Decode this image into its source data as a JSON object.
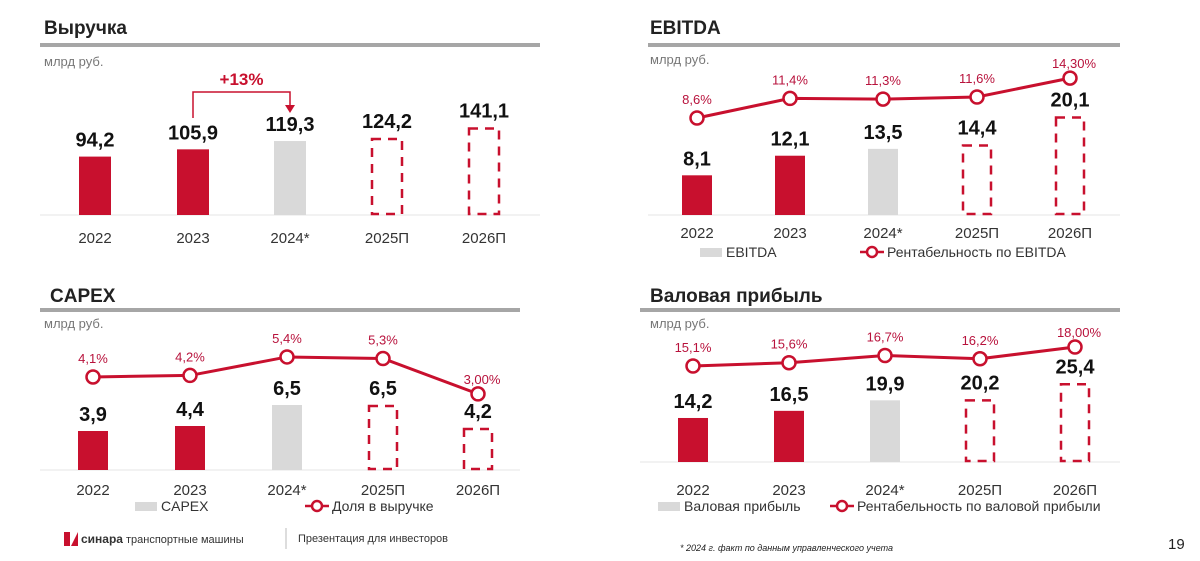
{
  "colors": {
    "accent": "#c8102e",
    "actual_2024": "#d9d9d9",
    "forecast_outline": "#c8102e",
    "rule": "#a6a6a6"
  },
  "chart_data": [
    {
      "type": "bar",
      "title": "Выручка",
      "unit": "млрд руб.",
      "categories": [
        "2022",
        "2023",
        "2024*",
        "2025П",
        "2026П"
      ],
      "values": [
        94.2,
        105.9,
        119.3,
        124.2,
        141.1
      ],
      "value_labels": [
        "94,2",
        "105,9",
        "119,3",
        "124,2",
        "141,1"
      ],
      "bar_styles": [
        "solid-red",
        "solid-red",
        "solid-gray",
        "dashed-outline",
        "dashed-outline"
      ],
      "annotation": {
        "text": "+13%",
        "from": "2023",
        "to": "2024*"
      }
    },
    {
      "type": "bar+line",
      "title": "EBITDA",
      "unit": "млрд руб.",
      "categories": [
        "2022",
        "2023",
        "2024*",
        "2025П",
        "2026П"
      ],
      "values": [
        8.1,
        12.1,
        13.5,
        14.4,
        20.1
      ],
      "value_labels": [
        "8,1",
        "12,1",
        "13,5",
        "14,4",
        "20,1"
      ],
      "bar_styles": [
        "solid-red",
        "solid-red",
        "solid-gray",
        "dashed-outline",
        "dashed-outline"
      ],
      "line_values": [
        8.6,
        11.4,
        11.3,
        11.6,
        14.3
      ],
      "line_labels": [
        "8,6%",
        "11,4%",
        "11,3%",
        "11,6%",
        "14,30%"
      ],
      "legend": {
        "bar": "EBITDA",
        "line": "Рентабельность по EBITDA"
      }
    },
    {
      "type": "bar+line",
      "title": "CAPEX",
      "unit": "млрд руб.",
      "categories": [
        "2022",
        "2023",
        "2024*",
        "2025П",
        "2026П"
      ],
      "values": [
        3.9,
        4.4,
        6.5,
        6.5,
        4.2
      ],
      "value_labels": [
        "3,9",
        "4,4",
        "6,5",
        "6,5",
        "4,2"
      ],
      "bar_styles": [
        "solid-red",
        "solid-red",
        "solid-gray",
        "dashed-outline",
        "dashed-outline"
      ],
      "line_values": [
        4.1,
        4.2,
        5.4,
        5.3,
        3.0
      ],
      "line_labels": [
        "4,1%",
        "4,2%",
        "5,4%",
        "5,3%",
        "3,00%"
      ],
      "legend": {
        "bar": "CAPEX",
        "line": "Доля в выручке"
      }
    },
    {
      "type": "bar+line",
      "title": "Валовая прибыль",
      "unit": "млрд руб.",
      "categories": [
        "2022",
        "2023",
        "2024*",
        "2025П",
        "2026П"
      ],
      "values": [
        14.2,
        16.5,
        19.9,
        20.2,
        25.4
      ],
      "value_labels": [
        "14,2",
        "16,5",
        "19,9",
        "20,2",
        "25,4"
      ],
      "bar_styles": [
        "solid-red",
        "solid-red",
        "solid-gray",
        "dashed-outline",
        "dashed-outline"
      ],
      "line_values": [
        15.1,
        15.6,
        16.7,
        16.2,
        18.0
      ],
      "line_labels": [
        "15,1%",
        "15,6%",
        "16,7%",
        "16,2%",
        "18,00%"
      ],
      "legend": {
        "bar": "Валовая прибыль",
        "line": "Рентабельность по валовой прибыли"
      }
    }
  ],
  "footer": {
    "logo_brand": "синара",
    "logo_text": "транспортные машины",
    "presentation": "Презентация для инвесторов",
    "note": "* 2024 г. факт по данным управленческого учета",
    "page_number": "19"
  }
}
